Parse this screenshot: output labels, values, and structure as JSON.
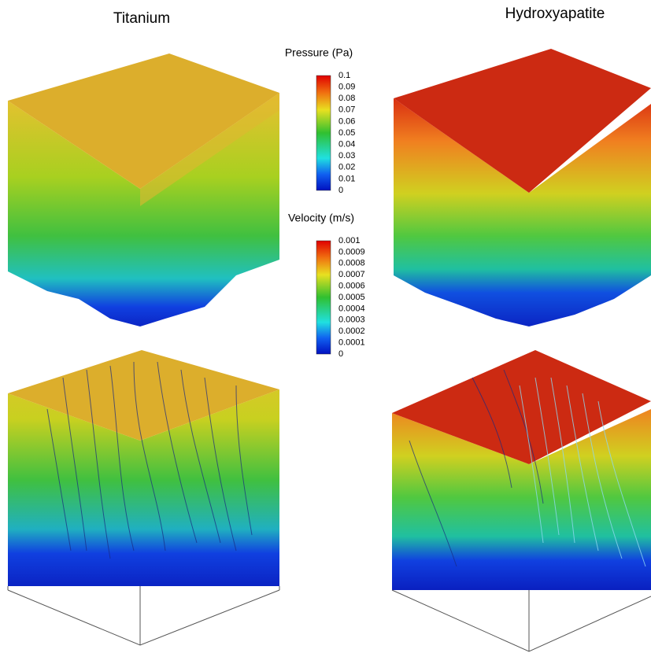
{
  "panels": [
    {
      "title": "Titanium"
    },
    {
      "title": "Hydroxyapatite"
    }
  ],
  "legends": [
    {
      "title": "Pressure (Pa)",
      "labels": [
        "0.1",
        "0.09",
        "0.08",
        "0.07",
        "0.06",
        "0.05",
        "0.04",
        "0.03",
        "0.02",
        "0.01",
        "0"
      ]
    },
    {
      "title": "Velocity (m/s)",
      "labels": [
        "0.001",
        "0.0009",
        "0.0008",
        "0.0007",
        "0.0006",
        "0.0005",
        "0.0004",
        "0.0003",
        "0.0002",
        "0.0001",
        "0"
      ]
    }
  ]
}
